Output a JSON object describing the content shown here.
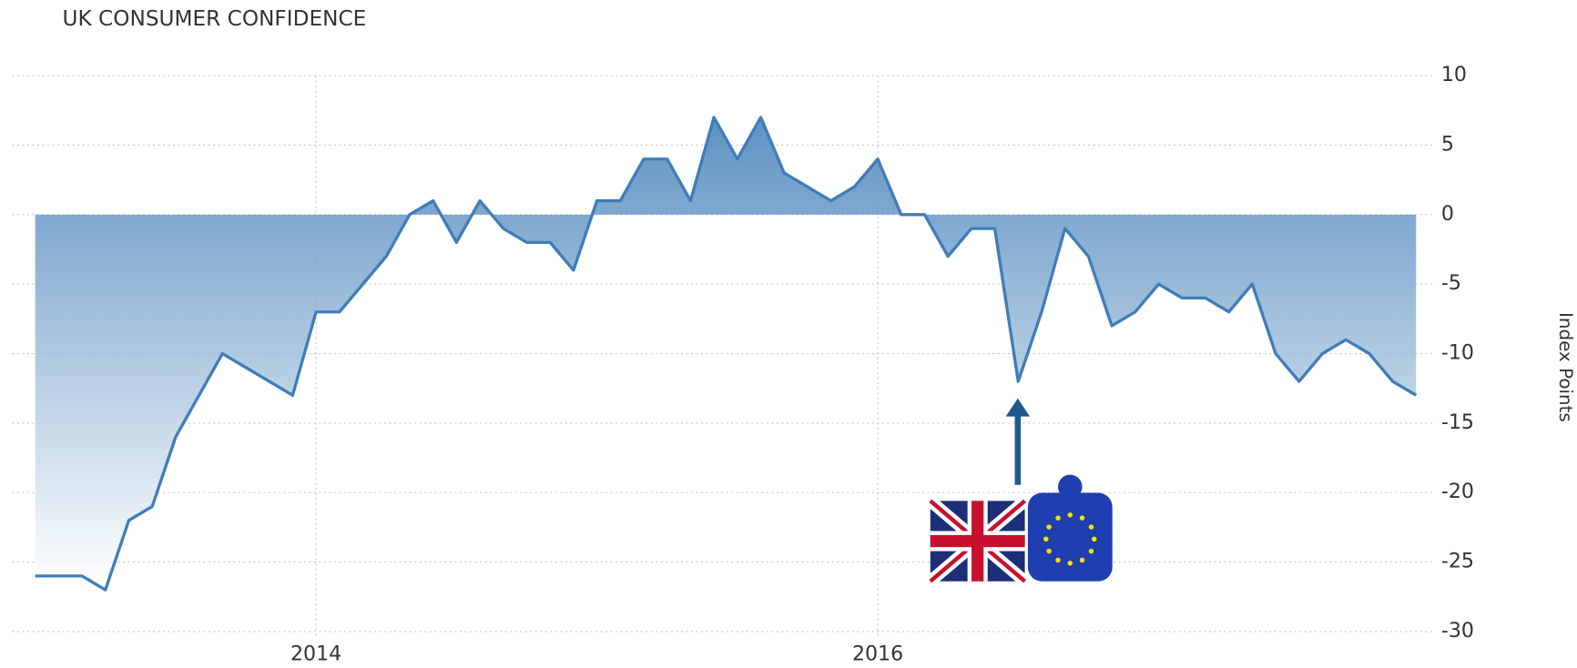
{
  "chart_data": {
    "type": "area",
    "title": "UK CONSUMER CONFIDENCE",
    "y_label": "Index Points",
    "categories": [
      null,
      null,
      null,
      null,
      null,
      null,
      null,
      null,
      null,
      null,
      null,
      null,
      "2014",
      null,
      null,
      null,
      null,
      null,
      null,
      null,
      null,
      null,
      null,
      null,
      null,
      null,
      null,
      null,
      null,
      null,
      null,
      null,
      null,
      null,
      null,
      null,
      "2016",
      null,
      null,
      null,
      null,
      null,
      null,
      null,
      null,
      null,
      null,
      null,
      null,
      null,
      null,
      null,
      null,
      null,
      null,
      null,
      null,
      null,
      null,
      null
    ],
    "values": [
      -26,
      -26,
      -26,
      -27,
      -22,
      -21,
      -16,
      -13,
      -10,
      -11,
      -12,
      -13,
      -7,
      -7,
      -5,
      -3,
      0,
      1,
      -2,
      1,
      -1,
      -2,
      -2,
      -4,
      1,
      1,
      4,
      4,
      1,
      7,
      4,
      7,
      3,
      2,
      1,
      2,
      4,
      0,
      0,
      -3,
      -1,
      -1,
      -12,
      -7,
      -1,
      -3,
      -8,
      -7,
      -5,
      -6,
      -6,
      -7,
      -5,
      -10,
      -12,
      -10,
      -9,
      -10,
      -12,
      -13
    ],
    "color": "#3f7db8",
    "ylim": [
      -30,
      10
    ],
    "yticks": [
      -30,
      -25,
      -20,
      -15,
      -10,
      -5,
      0,
      5,
      10
    ],
    "grid": true
  }
}
